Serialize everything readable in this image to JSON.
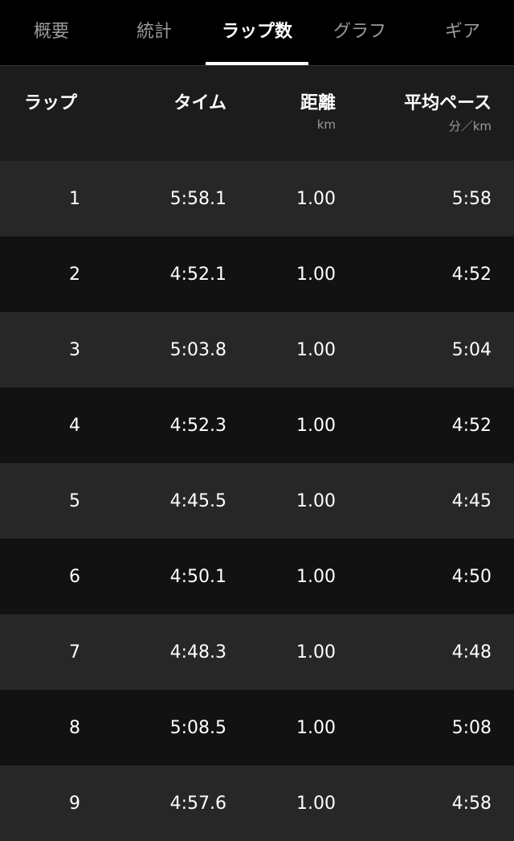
{
  "tabs": [
    {
      "label": "概要"
    },
    {
      "label": "統計"
    },
    {
      "label": "ラップ数",
      "active": true
    },
    {
      "label": "グラフ"
    },
    {
      "label": "ギア"
    }
  ],
  "columns": {
    "lap": "ラップ",
    "time": "タイム",
    "distance": "距離",
    "distance_unit": "km",
    "pace": "平均ペース",
    "pace_unit": "分／km"
  },
  "rows": [
    {
      "lap": "1",
      "time": "5:58.1",
      "distance": "1.00",
      "pace": "5:58"
    },
    {
      "lap": "2",
      "time": "4:52.1",
      "distance": "1.00",
      "pace": "4:52"
    },
    {
      "lap": "3",
      "time": "5:03.8",
      "distance": "1.00",
      "pace": "5:04"
    },
    {
      "lap": "4",
      "time": "4:52.3",
      "distance": "1.00",
      "pace": "4:52"
    },
    {
      "lap": "5",
      "time": "4:45.5",
      "distance": "1.00",
      "pace": "4:45"
    },
    {
      "lap": "6",
      "time": "4:50.1",
      "distance": "1.00",
      "pace": "4:50"
    },
    {
      "lap": "7",
      "time": "4:48.3",
      "distance": "1.00",
      "pace": "4:48"
    },
    {
      "lap": "8",
      "time": "5:08.5",
      "distance": "1.00",
      "pace": "5:08"
    },
    {
      "lap": "9",
      "time": "4:57.6",
      "distance": "1.00",
      "pace": "4:58"
    }
  ]
}
